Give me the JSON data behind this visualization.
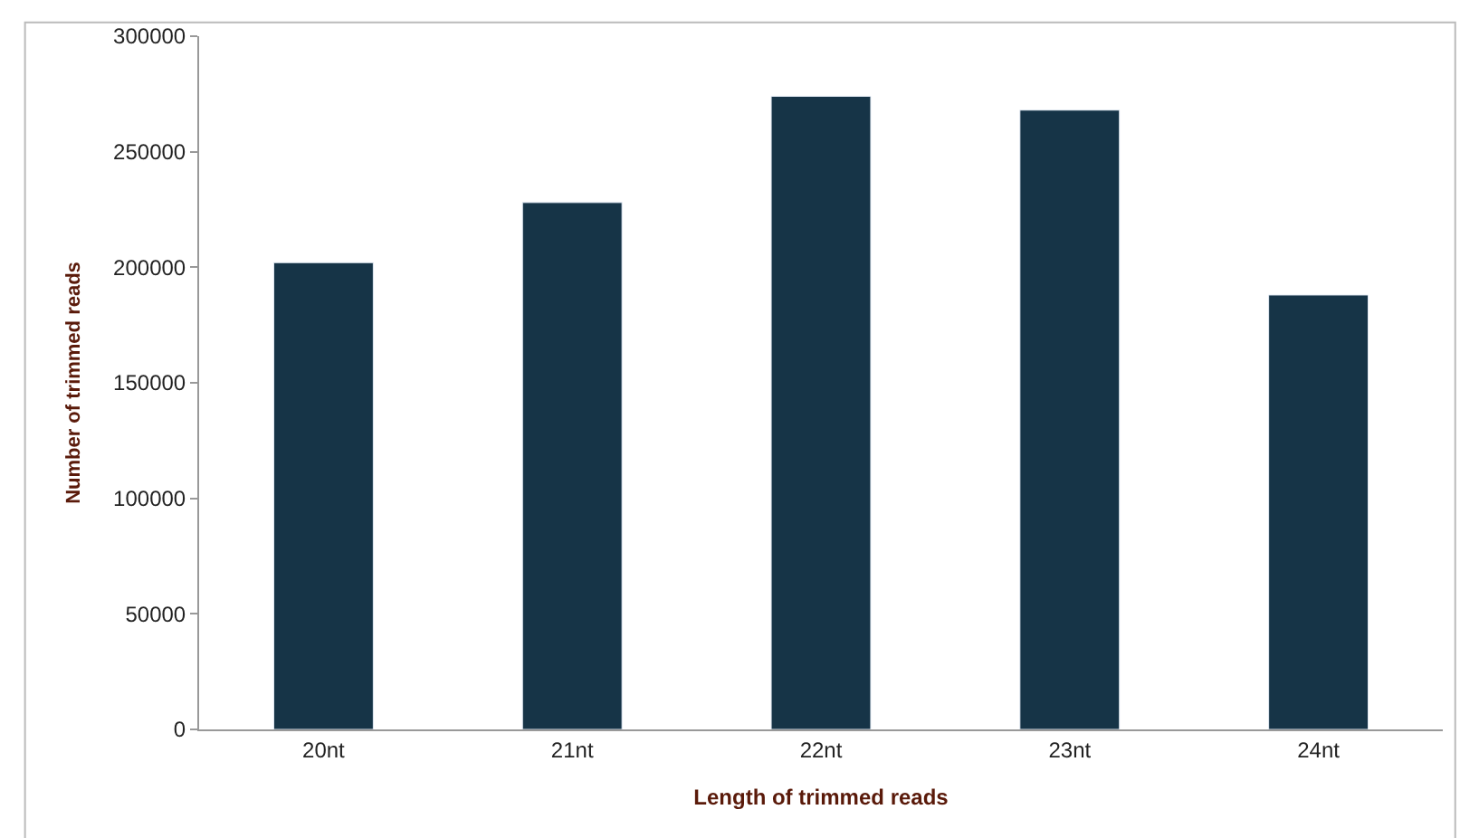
{
  "chart_data": {
    "type": "bar",
    "xlabel": "Length of trimmed reads",
    "ylabel": "Number of trimmed reads",
    "categories": [
      "20nt",
      "21nt",
      "22nt",
      "23nt",
      "24nt"
    ],
    "values": [
      202000,
      228000,
      274000,
      268000,
      188000
    ],
    "color": "#163447",
    "ylim": [
      0,
      300000
    ],
    "yticks": [
      0,
      50000,
      100000,
      150000,
      200000,
      250000,
      300000
    ],
    "grid": false,
    "legend": false
  }
}
